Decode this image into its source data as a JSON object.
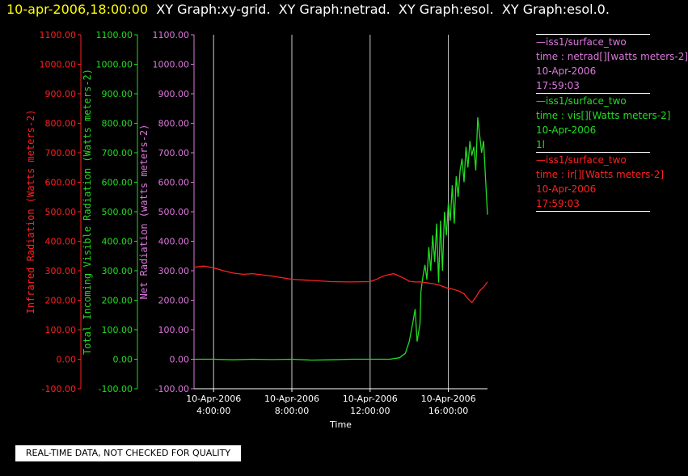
{
  "header": {
    "timestamp": "10-apr-2006,18:00:00",
    "titles": "  XY Graph:xy-grid.  XY Graph:netrad.  XY Graph:esol.  XY Graph:esol.0."
  },
  "notice": "REAL-TIME DATA, NOT CHECKED FOR QUALITY",
  "colors": {
    "ir": "#ff2020",
    "vis": "#22dd22",
    "net": "#dd77dd",
    "grid": "#cccccc"
  },
  "legend": [
    {
      "lines": [
        "—iss1/surface_two",
        "time : netrad[][watts meters-2]",
        "10-Apr-2006",
        "17:59:03"
      ],
      "color": "#dd77dd"
    },
    {
      "lines": [
        "—iss1/surface_two",
        "time : vis[][Watts meters-2]",
        "10-Apr-2006",
        "1l"
      ],
      "color": "#22dd22"
    },
    {
      "lines": [
        "—iss1/surface_two",
        "time : ir[][Watts meters-2]",
        "10-Apr-2006",
        "17:59:03"
      ],
      "color": "#ff2020"
    }
  ],
  "chart_data": {
    "type": "line",
    "xlabel": "Time",
    "xlim": [
      3.0,
      18.0
    ],
    "x_ticks": [
      {
        "value": 4,
        "date": "10-Apr-2006",
        "time": "4:00:00"
      },
      {
        "value": 8,
        "date": "10-Apr-2006",
        "time": "8:00:00"
      },
      {
        "value": 12,
        "date": "10-Apr-2006",
        "time": "12:00:00"
      },
      {
        "value": 16,
        "date": "10-Apr-2006",
        "time": "16:00:00"
      }
    ],
    "ylim": [
      -100,
      1100
    ],
    "y_ticks": [
      "-100.00",
      "0.00",
      "100.00",
      "200.00",
      "300.00",
      "400.00",
      "500.00",
      "600.00",
      "700.00",
      "800.00",
      "900.00",
      "1000.00",
      "1100.00"
    ],
    "y_axes": [
      {
        "label": "Infrared Radiation (Watts meters-2)",
        "color": "#ff2020"
      },
      {
        "label": "Total Incoming Visible Radiation (Watts meters-2)",
        "color": "#22dd22"
      },
      {
        "label": "Net Radiation (watts meters-2)",
        "color": "#dd77dd"
      }
    ],
    "grid": "vertical",
    "series": [
      {
        "color": "#22dd22",
        "x": [
          3.0,
          4.0,
          5.0,
          6.0,
          7.0,
          8.0,
          9.0,
          10.0,
          11.0,
          12.0,
          13.0,
          13.5,
          13.8,
          14.0,
          14.2,
          14.3,
          14.4,
          14.5,
          14.55,
          14.6,
          14.7,
          14.8,
          14.9,
          15.0,
          15.1,
          15.2,
          15.3,
          15.4,
          15.5,
          15.6,
          15.7,
          15.8,
          15.9,
          16.0,
          16.1,
          16.2,
          16.3,
          16.4,
          16.5,
          16.6,
          16.7,
          16.8,
          16.9,
          17.0,
          17.1,
          17.2,
          17.3,
          17.4,
          17.5,
          17.6,
          17.7,
          17.8,
          17.9,
          18.0
        ],
        "y": [
          0,
          0,
          -2,
          0,
          -1,
          0,
          -3,
          -2,
          0,
          0,
          0,
          5,
          20,
          60,
          130,
          170,
          60,
          100,
          120,
          230,
          280,
          320,
          270,
          380,
          300,
          420,
          330,
          460,
          260,
          470,
          300,
          500,
          420,
          530,
          470,
          590,
          460,
          620,
          550,
          640,
          680,
          600,
          720,
          650,
          740,
          690,
          720,
          640,
          820,
          760,
          700,
          740,
          610,
          490
        ]
      },
      {
        "color": "#ff2020",
        "x": [
          3.0,
          3.5,
          4.0,
          4.5,
          5.0,
          5.5,
          6.0,
          7.0,
          8.0,
          9.0,
          10.0,
          11.0,
          12.0,
          12.3,
          12.6,
          12.9,
          13.2,
          13.5,
          13.8,
          14.0,
          14.3,
          14.6,
          15.0,
          15.3,
          15.6,
          15.9,
          16.2,
          16.5,
          16.8,
          17.0,
          17.2,
          17.4,
          17.6,
          17.8,
          18.0
        ],
        "y": [
          312,
          316,
          310,
          300,
          292,
          288,
          290,
          282,
          271,
          267,
          263,
          262,
          263,
          270,
          280,
          286,
          290,
          282,
          272,
          264,
          262,
          262,
          258,
          255,
          250,
          242,
          238,
          232,
          222,
          205,
          192,
          210,
          232,
          245,
          262
        ]
      }
    ]
  }
}
